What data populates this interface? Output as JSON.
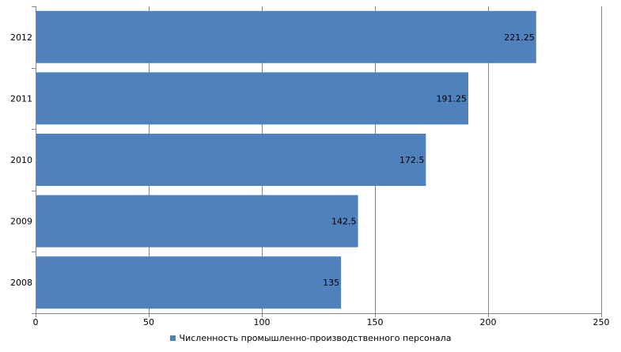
{
  "chart_data": {
    "type": "bar",
    "orientation": "horizontal",
    "categories": [
      "2008",
      "2009",
      "2010",
      "2011",
      "2012"
    ],
    "series": [
      {
        "name": "Численность промышленно-производственного персонала",
        "values": [
          135,
          142.5,
          172.5,
          191.25,
          221.25
        ],
        "labels": [
          "135",
          "142.5",
          "172.5",
          "191.25",
          "221.25"
        ],
        "color": "#4f81bd"
      }
    ],
    "title": "",
    "xlabel": "",
    "ylabel": "",
    "xlim": [
      0,
      250
    ],
    "x_ticks": [
      0,
      50,
      100,
      150,
      200,
      250
    ],
    "grid": "vertical",
    "legend_position": "bottom"
  }
}
